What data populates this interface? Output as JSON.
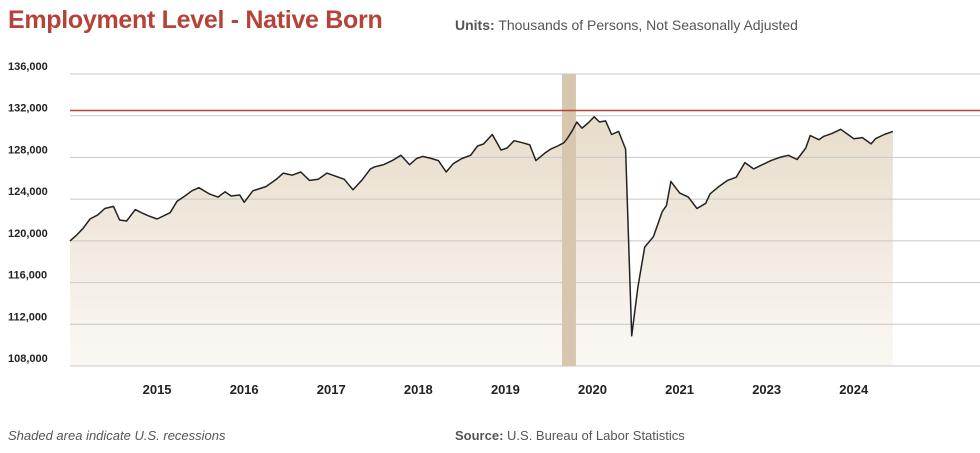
{
  "header": {
    "title": "Employment Level - Native Born",
    "units_label": "Units:",
    "units_text": "Thousands of Persons, Not Seasonally Adjusted"
  },
  "footer": {
    "note": "Shaded area indicate U.S. recessions",
    "source_label": "Source:",
    "source_text": "U.S. Bureau of Labor Statistics"
  },
  "colors": {
    "title": "#b5433a",
    "line": "#222222",
    "reference_line": "#b5433a",
    "recession": "#d7c7ae",
    "area_top": "#e8dccb",
    "area_bottom": "#fbf8f4",
    "grid": "#c8c8c8"
  },
  "chart_data": {
    "type": "area",
    "title": "Employment Level - Native Born",
    "ylabel": "Thousands of Persons, Not Seasonally Adjusted",
    "xlim": [
      2014.1,
      2024.55
    ],
    "ylim": [
      108000,
      136000
    ],
    "y_ticks": [
      108000,
      112000,
      116000,
      120000,
      124000,
      128000,
      132000,
      136000
    ],
    "y_tick_labels": [
      "108,000",
      "112,000",
      "116,000",
      "120,000",
      "124,000",
      "128,000",
      "132,000",
      "136,000"
    ],
    "x_ticks": [
      {
        "label": "2015",
        "x": 2015.1
      },
      {
        "label": "2016",
        "x": 2016.1
      },
      {
        "label": "2017",
        "x": 2017.1
      },
      {
        "label": "2018",
        "x": 2018.1
      },
      {
        "label": "2019",
        "x": 2019.1
      },
      {
        "label": "2020",
        "x": 2020.1
      },
      {
        "label": "2021",
        "x": 2021.1
      },
      {
        "label": "2023",
        "x": 2022.1
      },
      {
        "label": "2024",
        "x": 2023.1
      }
    ],
    "reference_line": {
      "y": 132500
    },
    "recession": {
      "x_start": 2019.75,
      "x_end": 2019.91
    },
    "grid": true,
    "series": [
      {
        "x": [
          2014.1,
          2014.17,
          2014.25,
          2014.33,
          2014.42,
          2014.5,
          2014.6,
          2014.67,
          2014.75,
          2014.85,
          2014.92,
          2015.0,
          2015.1,
          2015.25,
          2015.33,
          2015.42,
          2015.5,
          2015.58,
          2015.7,
          2015.8,
          2015.88,
          2015.95,
          2016.05,
          2016.1,
          2016.2,
          2016.35,
          2016.47,
          2016.55,
          2016.65,
          2016.75,
          2016.85,
          2016.95,
          2017.05,
          2017.15,
          2017.25,
          2017.35,
          2017.45,
          2017.55,
          2017.6,
          2017.7,
          2017.8,
          2017.9,
          2018.0,
          2018.08,
          2018.15,
          2018.25,
          2018.33,
          2018.42,
          2018.5,
          2018.6,
          2018.7,
          2018.78,
          2018.85,
          2018.95,
          2019.05,
          2019.12,
          2019.2,
          2019.3,
          2019.38,
          2019.45,
          2019.55,
          2019.62,
          2019.7,
          2019.77,
          2019.81,
          2019.87,
          2019.92,
          2019.98,
          2020.05,
          2020.12,
          2020.18,
          2020.25,
          2020.32,
          2020.4,
          2020.48,
          2020.55,
          2020.62,
          2020.7,
          2020.8,
          2020.9,
          2020.95,
          2021.0,
          2021.1,
          2021.2,
          2021.3,
          2021.4,
          2021.45,
          2021.55,
          2021.65,
          2021.75,
          2021.85,
          2021.95,
          2022.05,
          2022.15,
          2022.25,
          2022.35,
          2022.45,
          2022.55,
          2022.6,
          2022.7,
          2022.75,
          2022.85,
          2022.95,
          2023.05,
          2023.1,
          2023.2,
          2023.3,
          2023.35,
          2023.45,
          2023.55
        ],
        "y": [
          120000,
          120500,
          121200,
          122100,
          122500,
          123100,
          123300,
          122000,
          121900,
          123000,
          122700,
          122400,
          122100,
          122700,
          123800,
          124300,
          124800,
          125100,
          124500,
          124200,
          124700,
          124300,
          124400,
          123700,
          124800,
          125200,
          125900,
          126500,
          126300,
          126600,
          125800,
          125900,
          126500,
          126200,
          125900,
          124900,
          125800,
          126900,
          127100,
          127300,
          127700,
          128200,
          127300,
          127900,
          128100,
          127900,
          127700,
          126600,
          127400,
          127900,
          128200,
          129100,
          129300,
          130200,
          128700,
          128900,
          129600,
          129400,
          129200,
          127700,
          128400,
          128800,
          129100,
          129400,
          129800,
          130600,
          131400,
          130800,
          131300,
          131900,
          131400,
          131500,
          130200,
          130500,
          128800,
          110900,
          115500,
          119400,
          120400,
          122800,
          123400,
          125700,
          124600,
          124200,
          123100,
          123600,
          124500,
          125200,
          125800,
          126100,
          127500,
          126900,
          127300,
          127700,
          128000,
          128200,
          127800,
          128900,
          130100,
          129700,
          130000,
          130300,
          130700,
          130100,
          129800,
          129900,
          129300,
          129800,
          130200,
          130500
        ],
        "note": "x positions are on the chart's plotted time scale; the axis labels are as printed"
      }
    ]
  }
}
